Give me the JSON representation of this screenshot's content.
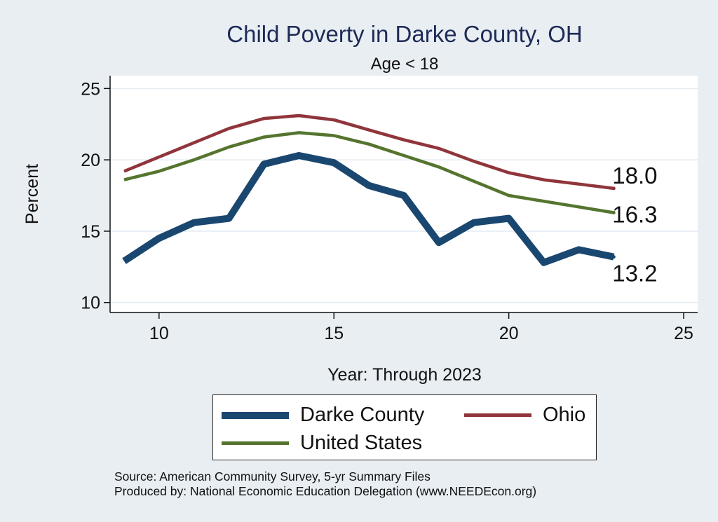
{
  "chart_data": {
    "type": "line",
    "title": "Child Poverty in Darke County, OH",
    "subtitle": "Age < 18",
    "xlabel": "Year: Through 2023",
    "ylabel": "Percent",
    "xlim": [
      8.6,
      25.4
    ],
    "ylim": [
      9.3,
      25.9
    ],
    "xticks": [
      10,
      15,
      20,
      25
    ],
    "yticks": [
      10,
      15,
      20,
      25
    ],
    "x": [
      9,
      10,
      11,
      12,
      13,
      14,
      15,
      16,
      17,
      18,
      19,
      20,
      21,
      22,
      23
    ],
    "grid": true,
    "series": [
      {
        "name": "Darke County",
        "color": "#1a476f",
        "values": [
          12.9,
          14.5,
          15.6,
          15.9,
          19.7,
          20.3,
          19.8,
          18.2,
          17.5,
          14.2,
          15.6,
          15.9,
          12.8,
          13.7,
          13.2
        ],
        "end_label": "13.2"
      },
      {
        "name": "Ohio",
        "color": "#90353b",
        "values": [
          19.2,
          20.2,
          21.2,
          22.2,
          22.9,
          23.1,
          22.8,
          22.1,
          21.4,
          20.8,
          19.9,
          19.1,
          18.6,
          18.3,
          18.0
        ],
        "end_label": "18.0"
      },
      {
        "name": "United States",
        "color": "#55752f",
        "values": [
          18.6,
          19.2,
          20.0,
          20.9,
          21.6,
          21.9,
          21.7,
          21.1,
          20.3,
          19.5,
          18.5,
          17.5,
          17.1,
          16.7,
          16.3
        ],
        "end_label": "16.3"
      }
    ],
    "legend": "bottom"
  },
  "source": {
    "line1": "Source: American Community Survey, 5-yr Summary Files",
    "line2": "Produced by: National Economic Education Delegation (www.NEEDEcon.org)"
  }
}
